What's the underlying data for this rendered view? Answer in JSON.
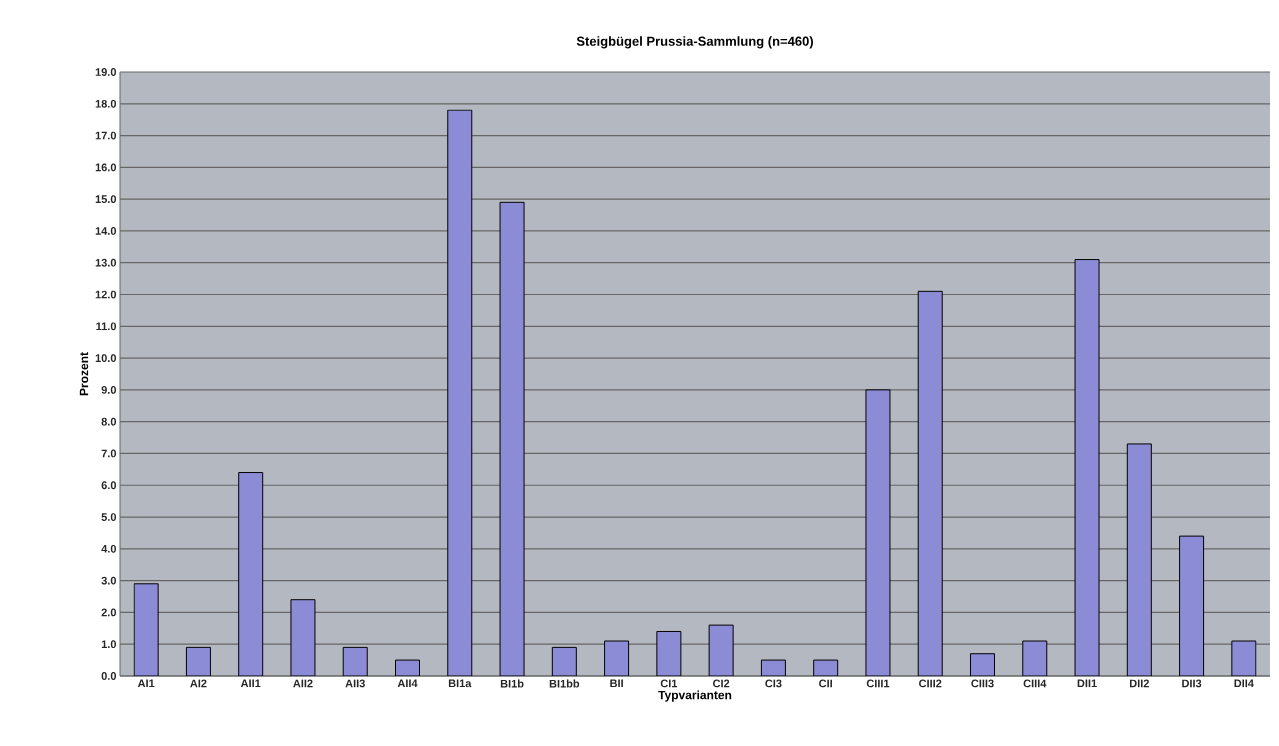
{
  "chart_data": {
    "type": "bar",
    "title": "Steigbügel Prussia-Sammlung (n=460)",
    "xlabel": "Typvarianten",
    "ylabel": "Prozent",
    "categories": [
      "AI1",
      "AI2",
      "AII1",
      "AII2",
      "AII3",
      "AII4",
      "BI1a",
      "BI1b",
      "BI1bb",
      "BII",
      "CI1",
      "CI2",
      "CI3",
      "CII",
      "CIII1",
      "CIII2",
      "CIII3",
      "CIII4",
      "DII1",
      "DII2",
      "DII3",
      "DII4"
    ],
    "values": [
      2.9,
      0.9,
      6.4,
      2.4,
      0.9,
      0.5,
      17.8,
      14.9,
      0.9,
      1.1,
      1.4,
      1.6,
      0.5,
      0.5,
      9.0,
      12.1,
      0.7,
      1.1,
      13.1,
      7.3,
      4.4,
      1.1
    ],
    "color": "#8c8cd6",
    "ylim": [
      0,
      19
    ],
    "yticks": [
      {
        "value": 0,
        "label": "0.0"
      },
      {
        "value": 1,
        "label": "1.0"
      },
      {
        "value": 2,
        "label": "2.0"
      },
      {
        "value": 3,
        "label": "3.0"
      },
      {
        "value": 4,
        "label": "4.0"
      },
      {
        "value": 5,
        "label": "5.0"
      },
      {
        "value": 6,
        "label": "6.0"
      },
      {
        "value": 7,
        "label": "7.0"
      },
      {
        "value": 8,
        "label": "8.0"
      },
      {
        "value": 9,
        "label": "9.0"
      },
      {
        "value": 10,
        "label": "10.0"
      },
      {
        "value": 11,
        "label": "11.0"
      },
      {
        "value": 12,
        "label": "12.0"
      },
      {
        "value": 13,
        "label": "13.0"
      },
      {
        "value": 14,
        "label": "14.0"
      },
      {
        "value": 15,
        "label": "15.0"
      },
      {
        "value": 16,
        "label": "16.0"
      },
      {
        "value": 17,
        "label": "17.0"
      },
      {
        "value": 18,
        "label": "18.0"
      },
      {
        "value": 19,
        "label": "19.0"
      }
    ],
    "grid": "y"
  }
}
